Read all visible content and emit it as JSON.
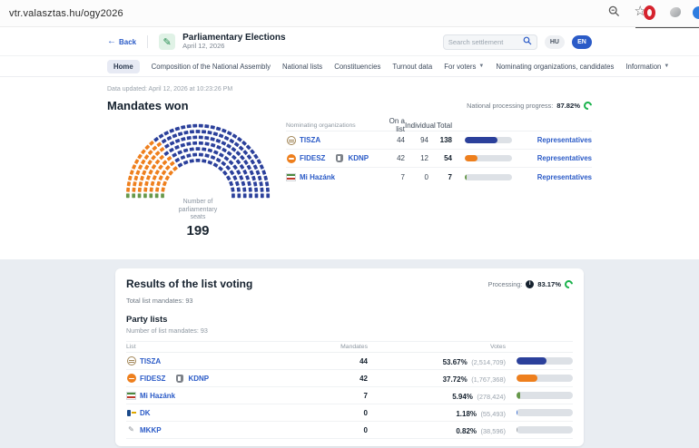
{
  "browser": {
    "url": "vtr.valasztas.hu/ogy2026"
  },
  "icons": {
    "back_arrow": "←",
    "star": "☆",
    "caret": "▼",
    "info": "i",
    "mkkp_doodle": "✎",
    "logo_glyph": "✎"
  },
  "header": {
    "back_label": "Back",
    "title": "Parliamentary Elections",
    "subtitle": "April 12, 2026",
    "search_placeholder": "Search settlement",
    "lang_hu": "HU",
    "lang_en": "EN"
  },
  "nav": {
    "items": [
      {
        "label": "Home",
        "active": true
      },
      {
        "label": "Composition of the National Assembly"
      },
      {
        "label": "National lists"
      },
      {
        "label": "Constituencies"
      },
      {
        "label": "Turnout data"
      },
      {
        "label": "For voters",
        "has_dropdown": true
      },
      {
        "label": "Nominating organizations, candidates"
      },
      {
        "label": "Information",
        "has_dropdown": true
      }
    ]
  },
  "main": {
    "data_updated": "Data updated: April 12, 2026 at 10:23:26 PM",
    "section_title": "Mandates won",
    "processing_label": "National processing progress:",
    "processing_value": "87.82%"
  },
  "chart_data": {
    "type": "parliament",
    "title": "Mandates won",
    "total_seats": 199,
    "center_label_lines": [
      "Number of",
      "parliamentary",
      "seats"
    ],
    "center_value": "199",
    "parties": [
      {
        "name": "Mi Hazánk",
        "seats": 7,
        "color": "#66984a"
      },
      {
        "name": "FIDESZ-KDNP",
        "seats": 54,
        "color": "#ee7f1d"
      },
      {
        "name": "TISZA",
        "seats": 138,
        "color": "#2b409b"
      }
    ]
  },
  "mandates_table": {
    "headers": {
      "org": "Nominating organizations",
      "on_list": "On a list",
      "individual": "Individual",
      "total": "Total"
    },
    "rows": [
      {
        "name": "TISZA",
        "on_list": "44",
        "individual": "94",
        "total": "138",
        "bar_pct": 69.3,
        "color": "#2b409b",
        "link": "Representatives"
      },
      {
        "name": "FIDESZ",
        "name2": "KDNP",
        "on_list": "42",
        "individual": "12",
        "total": "54",
        "bar_pct": 27.1,
        "color": "#ee7f1d",
        "link": "Representatives"
      },
      {
        "name": "Mi Hazánk",
        "on_list": "7",
        "individual": "0",
        "total": "7",
        "bar_pct": 3.5,
        "color": "#66984a",
        "link": "Representatives"
      }
    ]
  },
  "list_results": {
    "title": "Results of the list voting",
    "processing_label": "Processing:",
    "processing_value": "83.17%",
    "total_mandates": "Total list mandates: 93",
    "party_lists_title": "Party lists",
    "list_mandates_note": "Number of list mandates: 93",
    "headers": {
      "list": "List",
      "mandates": "Mandates",
      "votes": "Votes"
    },
    "rows": [
      {
        "name": "TISZA",
        "mandates": "44",
        "pct": "53.67%",
        "votes": "(2,514,709)",
        "bar_pct": 53.67,
        "color": "#2b409b"
      },
      {
        "name": "FIDESZ",
        "name2": "KDNP",
        "mandates": "42",
        "pct": "37.72%",
        "votes": "(1,767,368)",
        "bar_pct": 37.72,
        "color": "#ee7f1d"
      },
      {
        "name": "Mi Hazánk",
        "mandates": "7",
        "pct": "5.94%",
        "votes": "(278,424)",
        "bar_pct": 5.94,
        "color": "#66984a"
      },
      {
        "name": "DK",
        "mandates": "0",
        "pct": "1.18%",
        "votes": "(55,493)",
        "bar_pct": 1.18,
        "color": "#3b6fd4"
      },
      {
        "name": "MKKP",
        "mandates": "0",
        "pct": "0.82%",
        "votes": "(38,596)",
        "bar_pct": 0.82,
        "color": "#9aa0a6"
      }
    ]
  }
}
